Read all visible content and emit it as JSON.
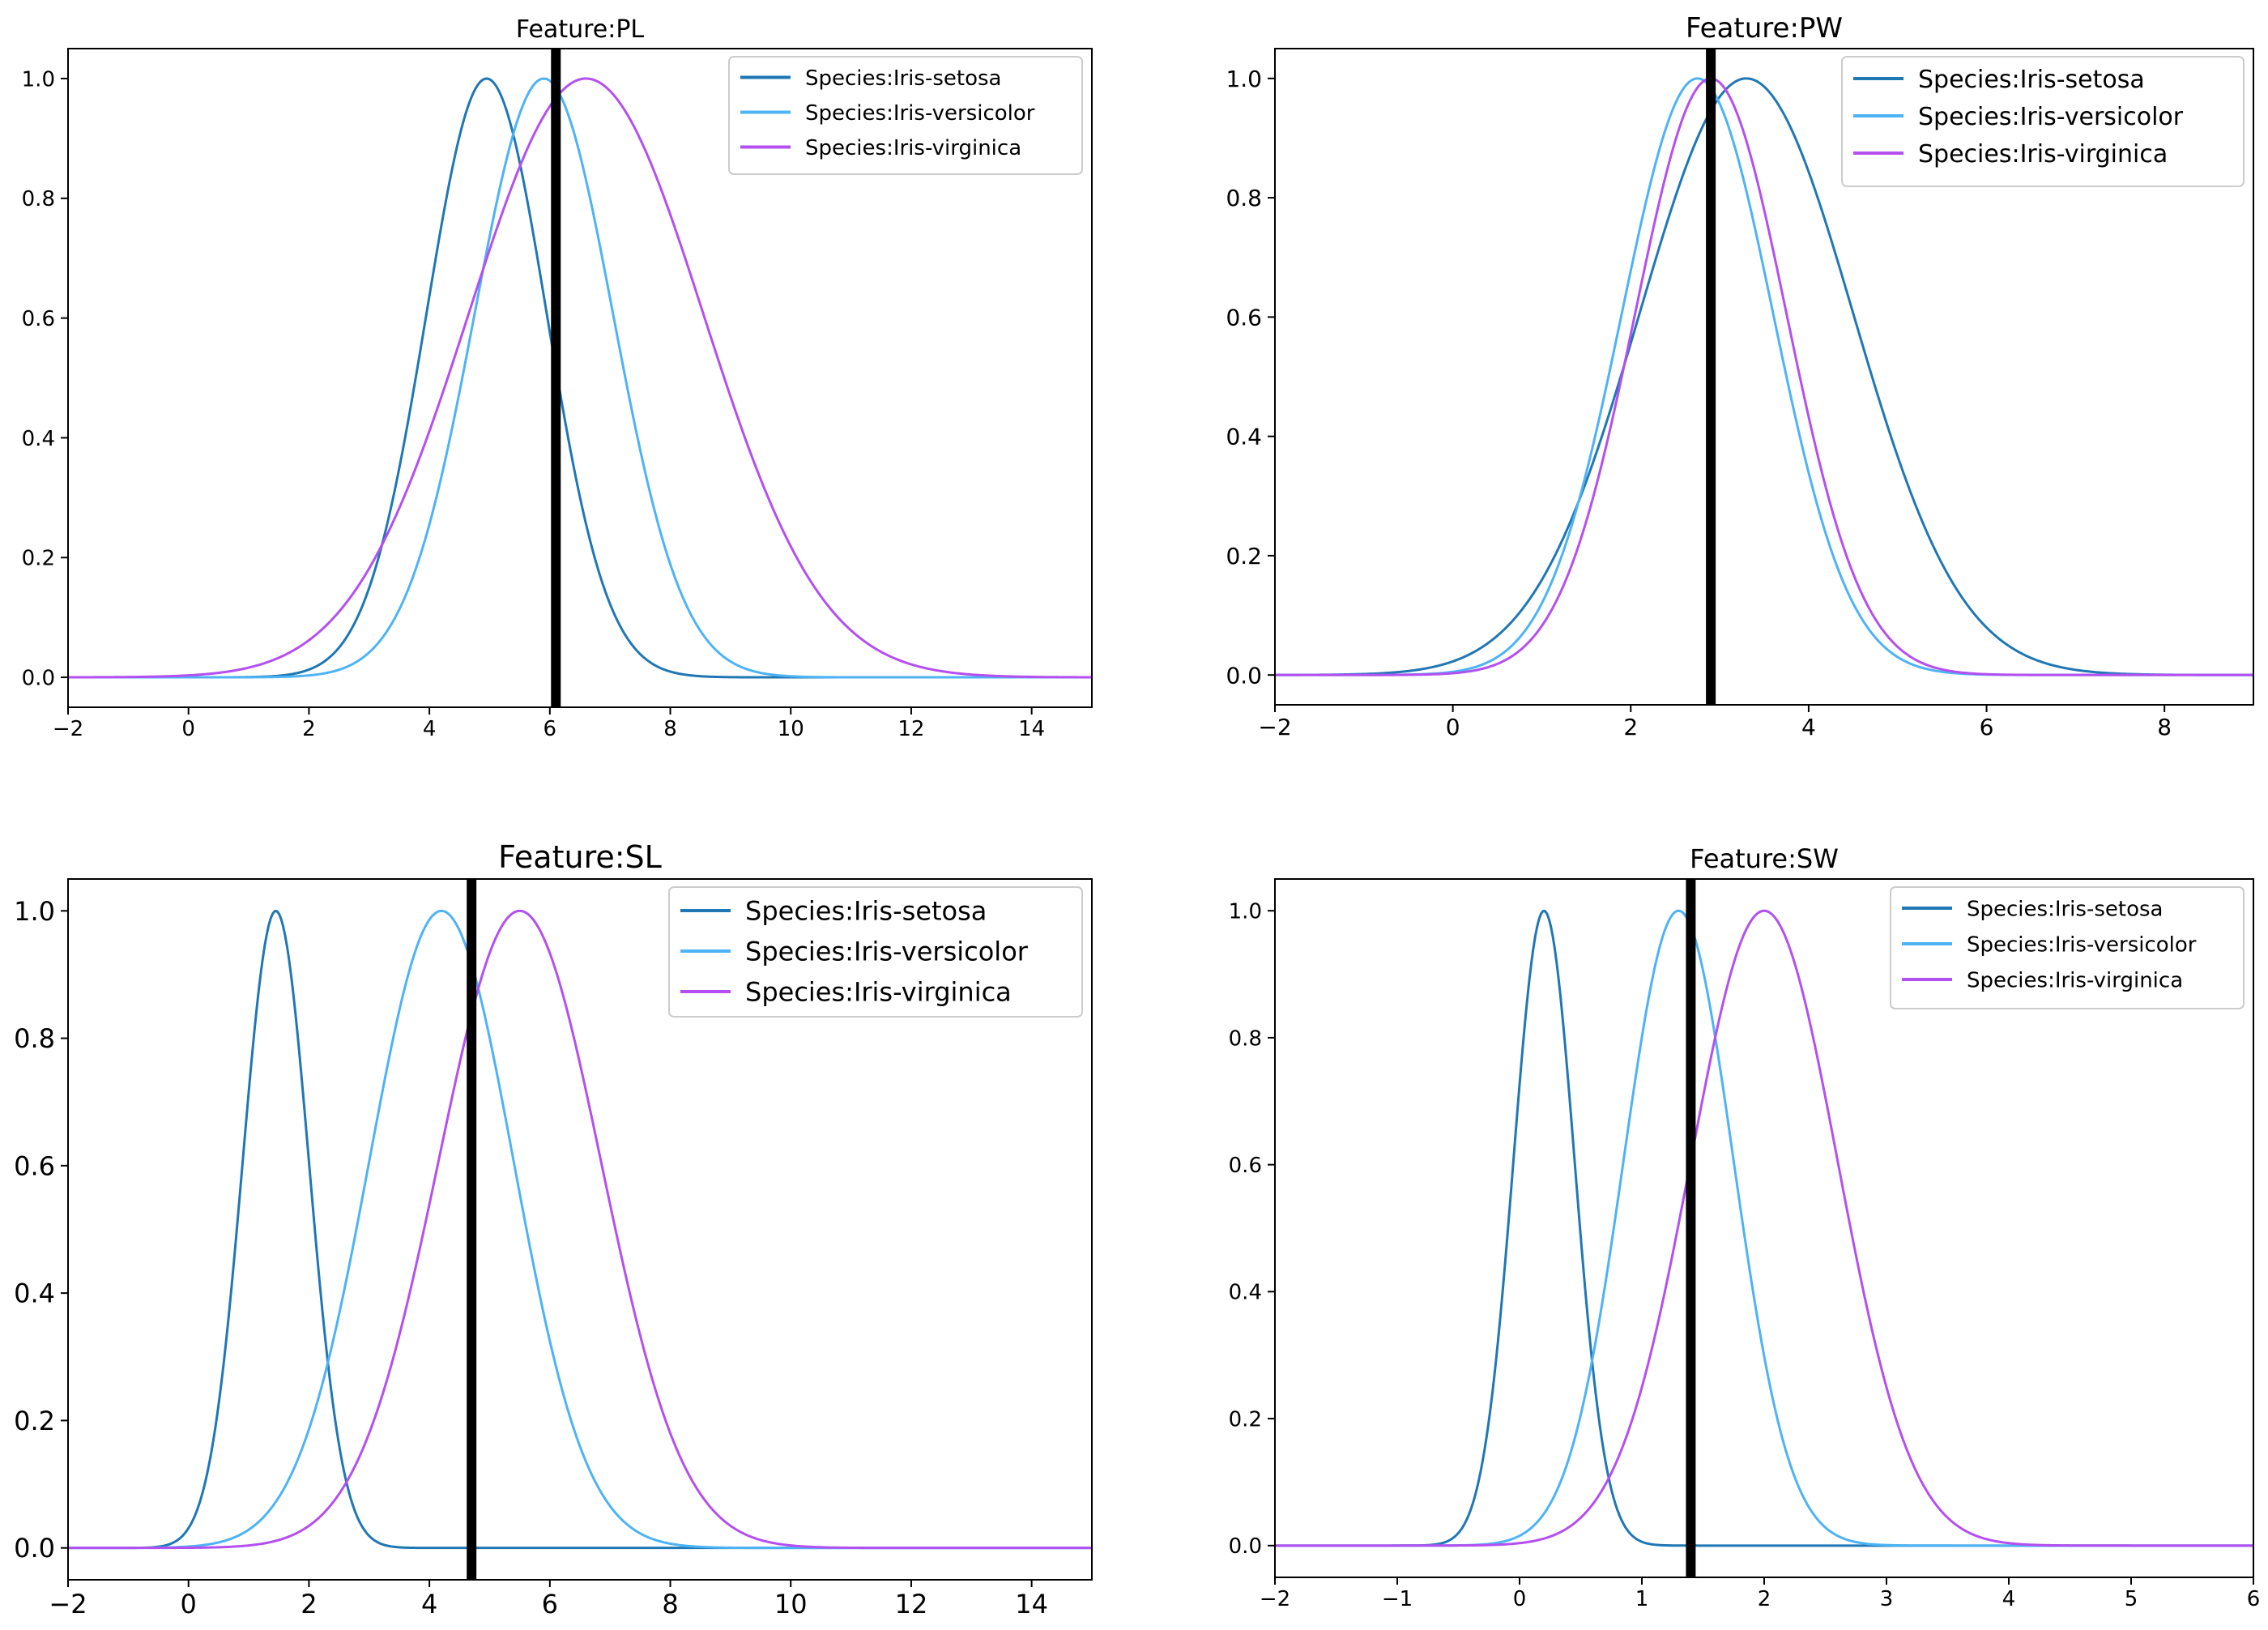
{
  "chart_data": [
    {
      "type": "line",
      "title": "Feature:PL",
      "xlabel": "",
      "ylabel": "",
      "xlim": [
        -2,
        15
      ],
      "ylim": [
        -0.05,
        1.05
      ],
      "xticks": [
        -2,
        0,
        2,
        4,
        6,
        8,
        10,
        12,
        14
      ],
      "yticks": [
        0.0,
        0.2,
        0.4,
        0.6,
        0.8,
        1.0
      ],
      "x_tick_labels": [
        "−2",
        "0",
        "2",
        "4",
        "6",
        "8",
        "10",
        "12",
        "14"
      ],
      "y_tick_labels": [
        "0.0",
        "0.2",
        "0.4",
        "0.6",
        "0.8",
        "1.0"
      ],
      "grid": false,
      "legend_position": "top-right",
      "vertical_line": {
        "x": 6.1,
        "color": "#000000"
      },
      "series": [
        {
          "name": "Species:Iris-setosa",
          "mean": 4.95,
          "sd": 1.0,
          "color": "#1f77b4"
        },
        {
          "name": "Species:Iris-versicolor",
          "mean": 5.9,
          "sd": 1.15,
          "color": "#4db3f5"
        },
        {
          "name": "Species:Iris-virginica",
          "mean": 6.6,
          "sd": 1.95,
          "color": "#b44ff0"
        }
      ]
    },
    {
      "type": "line",
      "title": "Feature:PW",
      "xlabel": "",
      "ylabel": "",
      "xlim": [
        -2,
        9
      ],
      "ylim": [
        -0.05,
        1.05
      ],
      "xticks": [
        -2,
        0,
        2,
        4,
        6,
        8
      ],
      "yticks": [
        0.0,
        0.2,
        0.4,
        0.6,
        0.8,
        1.0
      ],
      "x_tick_labels": [
        "−2",
        "0",
        "2",
        "4",
        "6",
        "8"
      ],
      "y_tick_labels": [
        "0.0",
        "0.2",
        "0.4",
        "0.6",
        "0.8",
        "1.0"
      ],
      "grid": false,
      "legend_position": "top-right",
      "vertical_line": {
        "x": 2.9,
        "color": "#000000"
      },
      "series": [
        {
          "name": "Species:Iris-setosa",
          "mean": 3.3,
          "sd": 1.2,
          "color": "#1f77b4"
        },
        {
          "name": "Species:Iris-versicolor",
          "mean": 2.75,
          "sd": 0.85,
          "color": "#4db3f5"
        },
        {
          "name": "Species:Iris-virginica",
          "mean": 2.9,
          "sd": 0.85,
          "color": "#b44ff0"
        }
      ]
    },
    {
      "type": "line",
      "title": "Feature:SL",
      "xlabel": "",
      "ylabel": "",
      "xlim": [
        -2,
        15
      ],
      "ylim": [
        -0.05,
        1.05
      ],
      "xticks": [
        -2,
        0,
        2,
        4,
        6,
        8,
        10,
        12,
        14
      ],
      "yticks": [
        0.0,
        0.2,
        0.4,
        0.6,
        0.8,
        1.0
      ],
      "x_tick_labels": [
        "−2",
        "0",
        "2",
        "4",
        "6",
        "8",
        "10",
        "12",
        "14"
      ],
      "y_tick_labels": [
        "0.0",
        "0.2",
        "0.4",
        "0.6",
        "0.8",
        "1.0"
      ],
      "grid": false,
      "legend_position": "top-right",
      "vertical_line": {
        "x": 4.7,
        "color": "#000000"
      },
      "series": [
        {
          "name": "Species:Iris-setosa",
          "mean": 1.45,
          "sd": 0.55,
          "color": "#1f77b4"
        },
        {
          "name": "Species:Iris-versicolor",
          "mean": 4.2,
          "sd": 1.2,
          "color": "#4db3f5"
        },
        {
          "name": "Species:Iris-virginica",
          "mean": 5.5,
          "sd": 1.35,
          "color": "#b44ff0"
        }
      ]
    },
    {
      "type": "line",
      "title": "Feature:SW",
      "xlabel": "",
      "ylabel": "",
      "xlim": [
        -2,
        6
      ],
      "ylim": [
        -0.05,
        1.05
      ],
      "xticks": [
        -2,
        -1,
        0,
        1,
        2,
        3,
        4,
        5,
        6
      ],
      "yticks": [
        0.0,
        0.2,
        0.4,
        0.6,
        0.8,
        1.0
      ],
      "x_tick_labels": [
        "−2",
        "−1",
        "0",
        "1",
        "2",
        "3",
        "4",
        "5",
        "6"
      ],
      "y_tick_labels": [
        "0.0",
        "0.2",
        "0.4",
        "0.6",
        "0.8",
        "1.0"
      ],
      "grid": false,
      "legend_position": "top-right",
      "vertical_line": {
        "x": 1.4,
        "color": "#000000"
      },
      "series": [
        {
          "name": "Species:Iris-setosa",
          "mean": 0.2,
          "sd": 0.25,
          "color": "#1f77b4"
        },
        {
          "name": "Species:Iris-versicolor",
          "mean": 1.3,
          "sd": 0.45,
          "color": "#4db3f5"
        },
        {
          "name": "Species:Iris-virginica",
          "mean": 2.0,
          "sd": 0.6,
          "color": "#b44ff0"
        }
      ]
    }
  ]
}
